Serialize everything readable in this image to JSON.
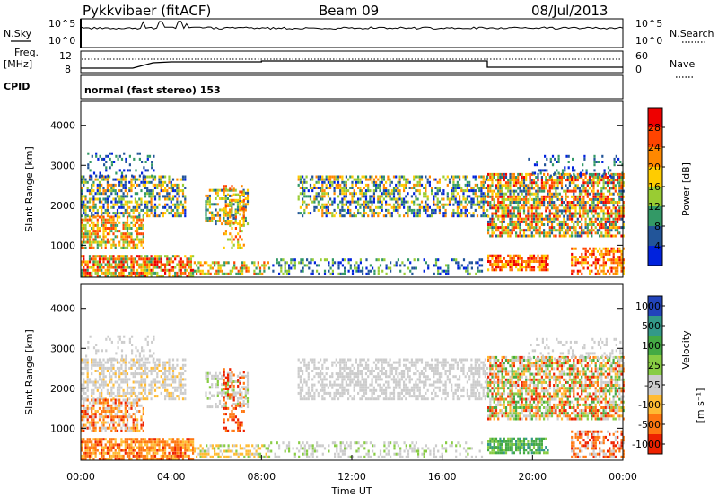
{
  "header": {
    "station": "Pykkvibaer (fitACF)",
    "beam": "Beam 09",
    "date": "08/Jul/2013"
  },
  "panels": {
    "nsky_label": "N.Sky",
    "nsky_ticks": [
      "10^5",
      "10^0"
    ],
    "nsearch_label": "N.Search",
    "nsearch_ticks": [
      "10^5",
      "10^0"
    ],
    "freq_label": "Freq.",
    "freq_unit": "[MHz]",
    "freq_ticks": [
      "12",
      "8"
    ],
    "nave_label": "Nave",
    "nave_ticks": [
      "60",
      "0"
    ],
    "cpid_label": "CPID",
    "cpid_text": "normal (fast stereo) 153"
  },
  "chart_data": [
    {
      "type": "heatmap",
      "name": "power",
      "xlabel": "",
      "ylabel": "Slant Range [km]",
      "x_range": [
        "00:00",
        "24:00"
      ],
      "y_range": [
        200,
        4600
      ],
      "y_ticks": [
        "4000",
        "3000",
        "2000",
        "1000"
      ],
      "colorbar": {
        "label": "Power [dB]",
        "ticks": [
          "28",
          "24",
          "20",
          "16",
          "12",
          "8",
          "4"
        ],
        "colors": [
          "#ee0000",
          "#ff4400",
          "#ff8800",
          "#ffcc00",
          "#99cc33",
          "#339966",
          "#225599",
          "#0022dd"
        ]
      }
    },
    {
      "type": "heatmap",
      "name": "velocity",
      "xlabel": "Time UT",
      "ylabel": "Slant Range [km]",
      "x_range": [
        "00:00",
        "24:00"
      ],
      "y_range": [
        200,
        4600
      ],
      "x_ticks": [
        "00:00",
        "04:00",
        "08:00",
        "12:00",
        "16:00",
        "20:00",
        "00:00"
      ],
      "y_ticks": [
        "4000",
        "3000",
        "2000",
        "1000"
      ],
      "colorbar": {
        "label": "Velocity",
        "unit": "[m s⁻¹]",
        "ticks": [
          "1000",
          "500",
          "100",
          "25",
          "-25",
          "-100",
          "-500",
          "-1000"
        ],
        "colors": [
          "#2244bb",
          "#339988",
          "#44aa44",
          "#88cc44",
          "#cccccc",
          "#ffbb33",
          "#ff7711",
          "#ee2200"
        ]
      }
    }
  ]
}
